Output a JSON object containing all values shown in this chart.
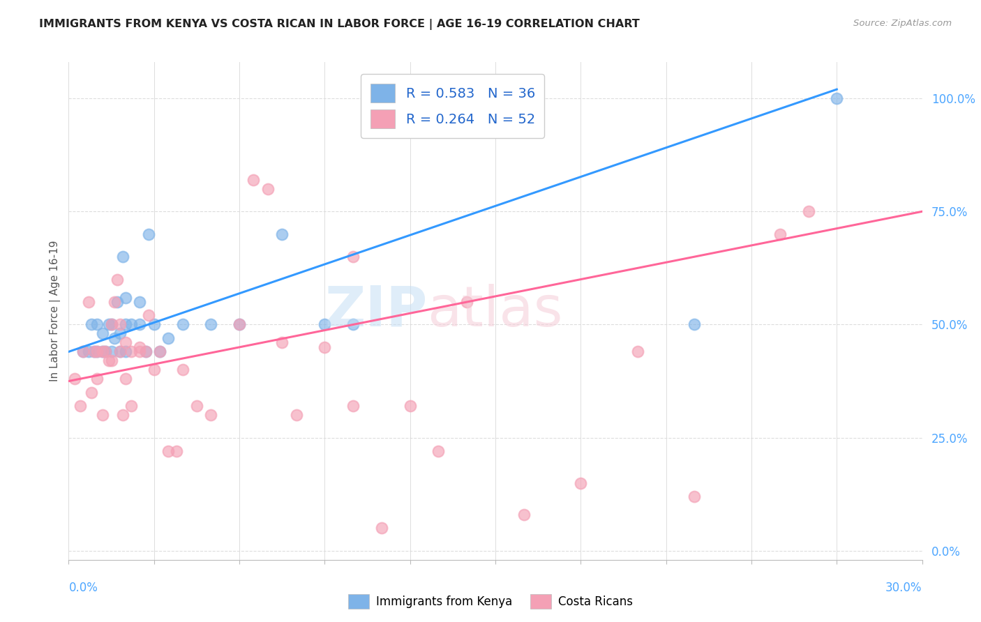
{
  "title": "IMMIGRANTS FROM KENYA VS COSTA RICAN IN LABOR FORCE | AGE 16-19 CORRELATION CHART",
  "source": "Source: ZipAtlas.com",
  "ylabel": "In Labor Force | Age 16-19",
  "ytick_labels": [
    "0.0%",
    "25.0%",
    "50.0%",
    "75.0%",
    "100.0%"
  ],
  "ytick_values": [
    0.0,
    0.25,
    0.5,
    0.75,
    1.0
  ],
  "xlim": [
    0.0,
    0.3
  ],
  "ylim": [
    -0.02,
    1.08
  ],
  "legend_kenya": "R = 0.583   N = 36",
  "legend_costarica": "R = 0.264   N = 52",
  "legend_bottom_kenya": "Immigrants from Kenya",
  "legend_bottom_costarica": "Costa Ricans",
  "kenya_color": "#7eb3e8",
  "costarica_color": "#f4a0b5",
  "kenya_line_color": "#3399ff",
  "costarica_line_color": "#ff6699",
  "kenya_line_x0": 0.0,
  "kenya_line_y0": 0.44,
  "kenya_line_x1": 0.27,
  "kenya_line_y1": 1.02,
  "costa_line_x0": 0.0,
  "costa_line_y0": 0.375,
  "costa_line_x1": 0.3,
  "costa_line_y1": 0.75,
  "kenya_scatter_x": [
    0.005,
    0.007,
    0.008,
    0.009,
    0.01,
    0.01,
    0.012,
    0.012,
    0.013,
    0.014,
    0.015,
    0.015,
    0.016,
    0.017,
    0.018,
    0.018,
    0.019,
    0.02,
    0.02,
    0.02,
    0.022,
    0.025,
    0.025,
    0.027,
    0.028,
    0.03,
    0.032,
    0.035,
    0.04,
    0.05,
    0.06,
    0.075,
    0.09,
    0.1,
    0.22,
    0.27
  ],
  "kenya_scatter_y": [
    0.44,
    0.44,
    0.5,
    0.44,
    0.5,
    0.44,
    0.44,
    0.48,
    0.44,
    0.5,
    0.44,
    0.5,
    0.47,
    0.55,
    0.44,
    0.48,
    0.65,
    0.44,
    0.5,
    0.56,
    0.5,
    0.5,
    0.55,
    0.44,
    0.7,
    0.5,
    0.44,
    0.47,
    0.5,
    0.5,
    0.5,
    0.7,
    0.5,
    0.5,
    0.5,
    1.0
  ],
  "costarica_scatter_x": [
    0.002,
    0.004,
    0.005,
    0.007,
    0.008,
    0.009,
    0.01,
    0.01,
    0.012,
    0.012,
    0.013,
    0.014,
    0.015,
    0.015,
    0.016,
    0.017,
    0.018,
    0.018,
    0.019,
    0.02,
    0.02,
    0.022,
    0.022,
    0.025,
    0.025,
    0.027,
    0.028,
    0.03,
    0.032,
    0.035,
    0.038,
    0.04,
    0.045,
    0.05,
    0.06,
    0.065,
    0.07,
    0.075,
    0.08,
    0.09,
    0.1,
    0.1,
    0.11,
    0.12,
    0.13,
    0.14,
    0.16,
    0.18,
    0.2,
    0.22,
    0.25,
    0.26
  ],
  "costarica_scatter_y": [
    0.38,
    0.32,
    0.44,
    0.55,
    0.35,
    0.44,
    0.44,
    0.38,
    0.3,
    0.44,
    0.44,
    0.42,
    0.42,
    0.5,
    0.55,
    0.6,
    0.5,
    0.44,
    0.3,
    0.38,
    0.46,
    0.44,
    0.32,
    0.45,
    0.44,
    0.44,
    0.52,
    0.4,
    0.44,
    0.22,
    0.22,
    0.4,
    0.32,
    0.3,
    0.5,
    0.82,
    0.8,
    0.46,
    0.3,
    0.45,
    0.32,
    0.65,
    0.05,
    0.32,
    0.22,
    0.55,
    0.08,
    0.15,
    0.44,
    0.12,
    0.7,
    0.75
  ],
  "background_color": "#ffffff",
  "grid_color": "#dddddd"
}
